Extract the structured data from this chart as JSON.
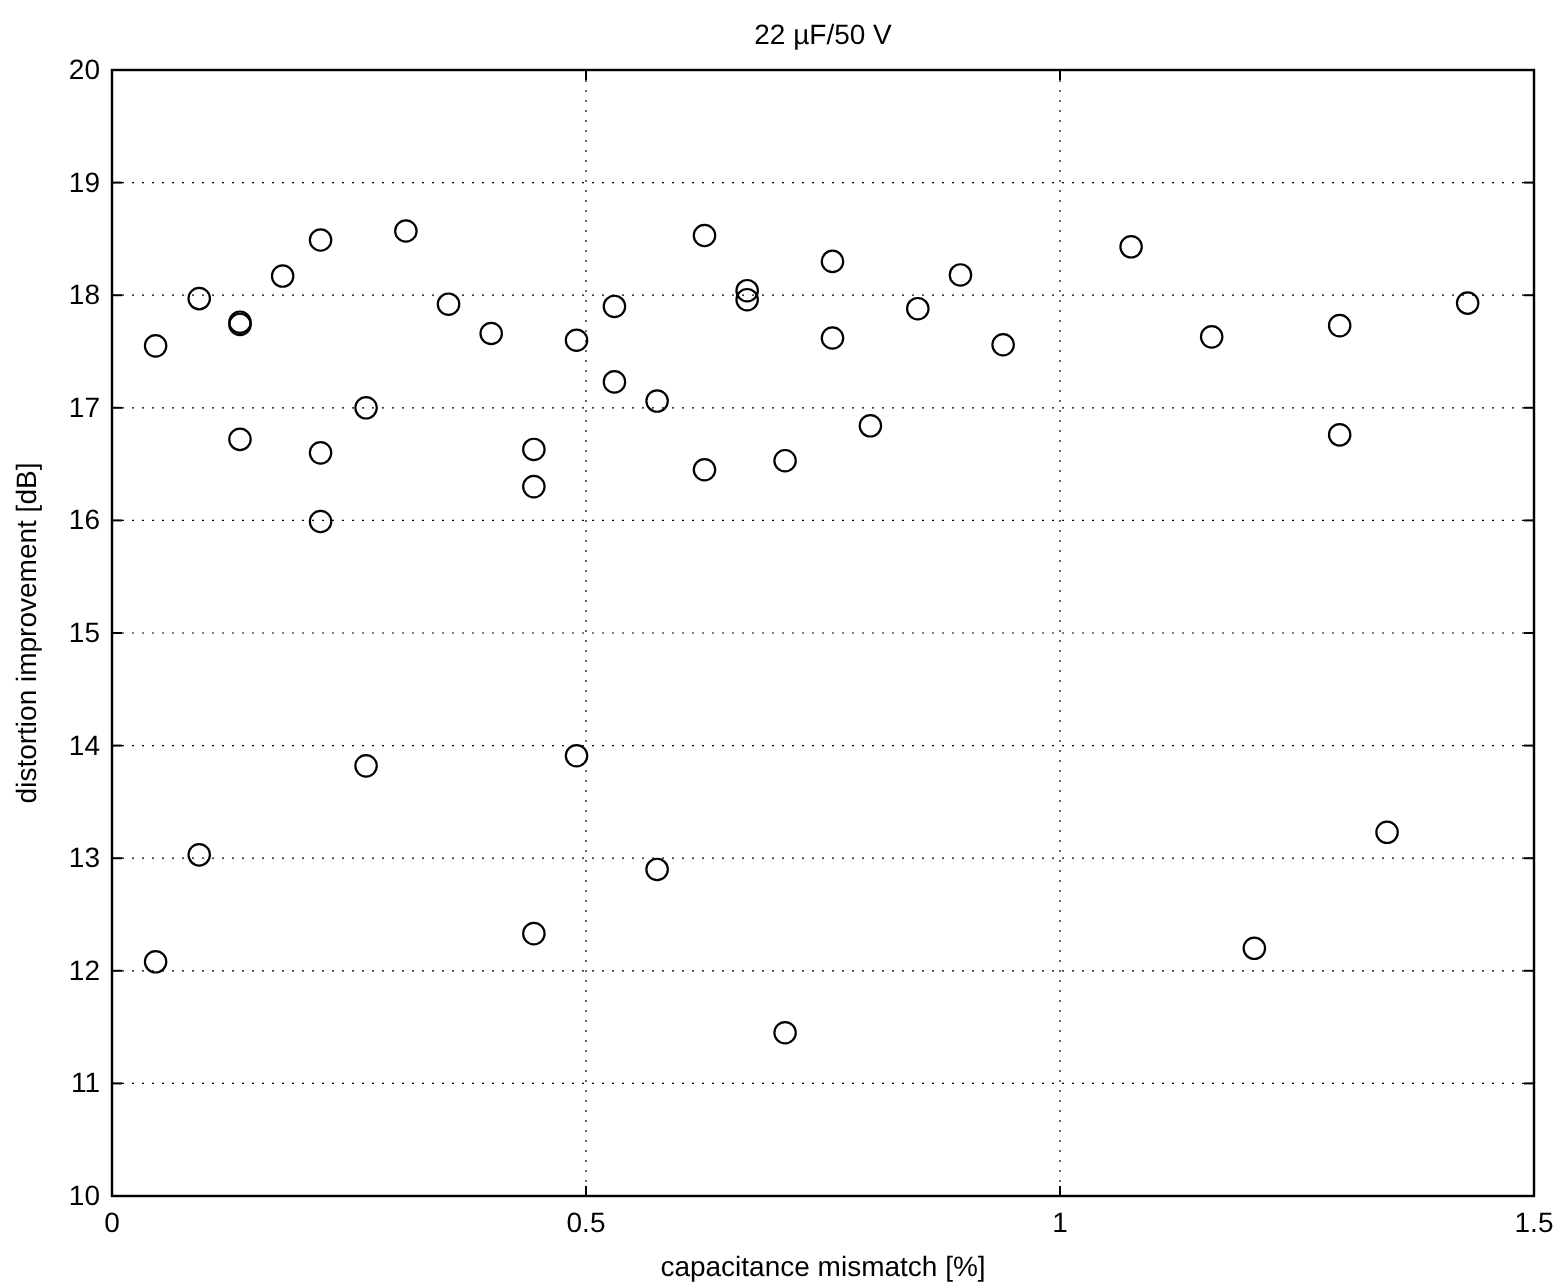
{
  "chart_data": {
    "type": "scatter",
    "title": "22 µF/50 V",
    "xlabel": "capacitance mismatch [%]",
    "ylabel": "distortion improvement [dB]",
    "xlim": [
      0,
      1.5
    ],
    "xticks": [
      0,
      0.5,
      1,
      1.5
    ],
    "ylim": [
      10,
      20
    ],
    "yticks": [
      10,
      11,
      12,
      13,
      14,
      15,
      16,
      17,
      18,
      19,
      20
    ],
    "grid": true,
    "marker": "circle",
    "series": [
      {
        "color": "#000000",
        "x": [
          0.046,
          0.046,
          0.092,
          0.092,
          0.135,
          0.135,
          0.135,
          0.18,
          0.22,
          0.22,
          0.22,
          0.268,
          0.268,
          0.31,
          0.355,
          0.4,
          0.445,
          0.445,
          0.445,
          0.49,
          0.49,
          0.53,
          0.53,
          0.575,
          0.575,
          0.625,
          0.625,
          0.67,
          0.67,
          0.71,
          0.71,
          0.76,
          0.76,
          0.8,
          0.85,
          0.895,
          0.94,
          1.075,
          1.16,
          1.205,
          1.295,
          1.295,
          1.345,
          1.43
        ],
        "values": [
          17.55,
          12.08,
          17.97,
          13.03,
          17.76,
          17.74,
          16.72,
          18.17,
          18.49,
          16.6,
          15.99,
          17.0,
          13.82,
          18.57,
          17.92,
          17.66,
          16.63,
          16.3,
          12.33,
          17.6,
          13.91,
          17.9,
          17.23,
          17.06,
          12.9,
          18.53,
          16.45,
          18.04,
          17.96,
          16.53,
          11.45,
          18.3,
          17.62,
          16.84,
          17.88,
          18.18,
          17.56,
          18.43,
          17.63,
          12.2,
          17.73,
          16.76,
          13.23,
          17.93
        ]
      }
    ]
  }
}
